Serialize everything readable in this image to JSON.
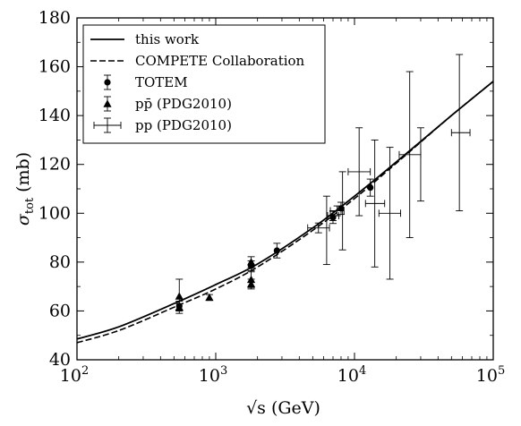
{
  "chart_data": {
    "type": "scatter",
    "x_axis": {
      "scale": "log",
      "range": [
        100,
        100000
      ],
      "tick_values": [
        100,
        1000,
        10000,
        100000
      ],
      "tick_base": "10",
      "tick_exponents": [
        "2",
        "3",
        "4",
        "5"
      ],
      "label_main": "√s",
      "label_unit": "(GeV)"
    },
    "y_axis": {
      "scale": "linear",
      "range": [
        40,
        180
      ],
      "ticks": [
        "40",
        "60",
        "80",
        "100",
        "120",
        "140",
        "160",
        "180"
      ],
      "label_symbol": "σ",
      "label_sub": "tot",
      "label_unit": "(mb)"
    },
    "grid": false,
    "legend_placement": "top-left",
    "series": [
      {
        "name": "this work",
        "kind": "line",
        "style": "solid",
        "x": [
          100,
          200,
          500,
          1000,
          2000,
          5000,
          10000,
          20000,
          50000,
          100000
        ],
        "y": [
          48.5,
          53.5,
          63.0,
          70.8,
          79.2,
          94.0,
          107.0,
          121.0,
          140.0,
          154.0
        ]
      },
      {
        "name": "COMPETE Collaboration",
        "kind": "line",
        "style": "dashed",
        "x": [
          100,
          200,
          500,
          1000,
          2000,
          5000,
          10000,
          20000,
          50000,
          100000
        ],
        "y": [
          47.0,
          52.0,
          61.5,
          69.0,
          78.0,
          93.0,
          106.0,
          120.5,
          140.0,
          154.0
        ]
      },
      {
        "name": "TOTEM",
        "kind": "points",
        "marker": "circle",
        "points": [
          {
            "x": 546,
            "y": 62.0,
            "err": 2.0
          },
          {
            "x": 1800,
            "y": 78.5,
            "err": 2.0
          },
          {
            "x": 2760,
            "y": 84.7,
            "err": 3.0
          },
          {
            "x": 7000,
            "y": 98.3,
            "err": 2.5
          },
          {
            "x": 8000,
            "y": 102.0,
            "err": 2.5
          },
          {
            "x": 13000,
            "y": 110.5,
            "err": 3.5
          }
        ]
      },
      {
        "name": "pp̄ (PDG2010)",
        "kind": "points",
        "marker": "triangle",
        "points": [
          {
            "x": 546,
            "y": 61.5,
            "err": 1.5
          },
          {
            "x": 546,
            "y": 66.0,
            "err": 7.0
          },
          {
            "x": 900,
            "y": 65.5,
            "err": 1.2
          },
          {
            "x": 1800,
            "y": 72.8,
            "err": 3.2
          },
          {
            "x": 1800,
            "y": 71.0,
            "err": 2.0
          },
          {
            "x": 1800,
            "y": 80.0,
            "err": 2.2
          }
        ]
      },
      {
        "name": "pp (PDG2010)",
        "kind": "points",
        "marker": "none",
        "points": [
          {
            "x": 5500,
            "y": 94.0,
            "yerr": 2.0,
            "xlo": 4600,
            "xhi": 6600
          },
          {
            "x": 6300,
            "y": 93.0,
            "yerr": 14.0,
            "xlo": 6300,
            "xhi": 6300
          },
          {
            "x": 7000,
            "y": 99.0,
            "yerr": 2.0,
            "xlo": 6400,
            "xhi": 7700
          },
          {
            "x": 7500,
            "y": 101.0,
            "yerr": 2.0,
            "xlo": 6700,
            "xhi": 8400
          },
          {
            "x": 8200,
            "y": 101.0,
            "yerr": 16.0,
            "xlo": 8200,
            "xhi": 8200
          },
          {
            "x": 10800,
            "y": 117.0,
            "yerr": 18.0,
            "xlo": 9000,
            "xhi": 13000
          },
          {
            "x": 14000,
            "y": 104.0,
            "yerr": 26.0,
            "xlo": 12000,
            "xhi": 16500
          },
          {
            "x": 18000,
            "y": 100.0,
            "yerr": 27.0,
            "xlo": 15000,
            "xhi": 21500
          },
          {
            "x": 25000,
            "y": 124.0,
            "yerr": 34.0,
            "xlo": 21000,
            "xhi": 30000
          },
          {
            "x": 30000,
            "y": 120.0,
            "yerr": 15.0,
            "xlo": 30000,
            "xhi": 30000
          },
          {
            "x": 57000,
            "y": 133.0,
            "yerr": 32.0,
            "xlo": 50000,
            "xhi": 68000
          }
        ]
      }
    ]
  }
}
